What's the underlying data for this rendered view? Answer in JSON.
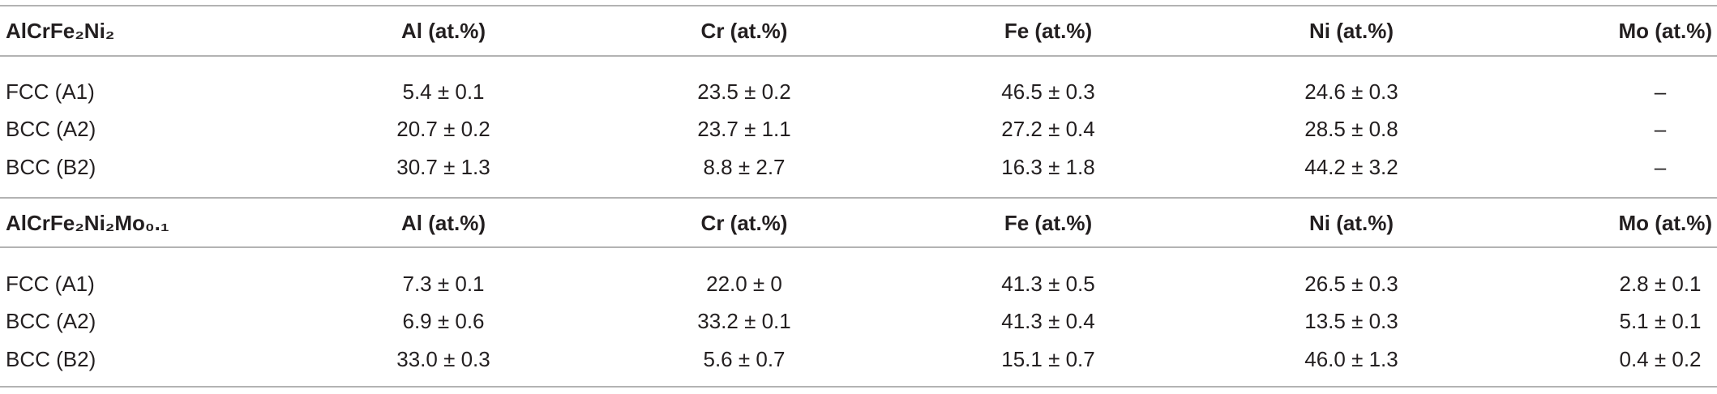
{
  "sections": [
    {
      "title": "AlCrFe₂Ni₂",
      "columns": [
        "Al (at.%)",
        "Cr (at.%)",
        "Fe (at.%)",
        "Ni (at.%)",
        "Mo (at.%)"
      ],
      "rows": [
        [
          "FCC (A1)",
          "5.4 ± 0.1",
          "23.5 ± 0.2",
          "46.5 ± 0.3",
          "24.6 ± 0.3",
          "–"
        ],
        [
          "BCC (A2)",
          "20.7 ± 0.2",
          "23.7 ± 1.1",
          "27.2 ± 0.4",
          "28.5 ± 0.8",
          "–"
        ],
        [
          "BCC (B2)",
          "30.7 ± 1.3",
          "8.8 ± 2.7",
          "16.3 ± 1.8",
          "44.2 ± 3.2",
          "–"
        ]
      ]
    },
    {
      "title": "AlCrFe₂Ni₂Mo₀.₁",
      "columns": [
        "Al (at.%)",
        "Cr (at.%)",
        "Fe (at.%)",
        "Ni (at.%)",
        "Mo (at.%)"
      ],
      "rows": [
        [
          "FCC (A1)",
          "7.3 ± 0.1",
          "22.0 ± 0",
          "41.3 ± 0.5",
          "26.5 ± 0.3",
          "2.8 ± 0.1"
        ],
        [
          "BCC (A2)",
          "6.9 ± 0.6",
          "33.2 ± 0.1",
          "41.3 ± 0.4",
          "13.5 ± 0.3",
          "5.1 ± 0.1"
        ],
        [
          "BCC (B2)",
          "33.0 ± 0.3",
          "5.6 ± 0.7",
          "15.1 ± 0.7",
          "46.0 ± 1.3",
          "0.4 ± 0.2"
        ]
      ]
    }
  ]
}
